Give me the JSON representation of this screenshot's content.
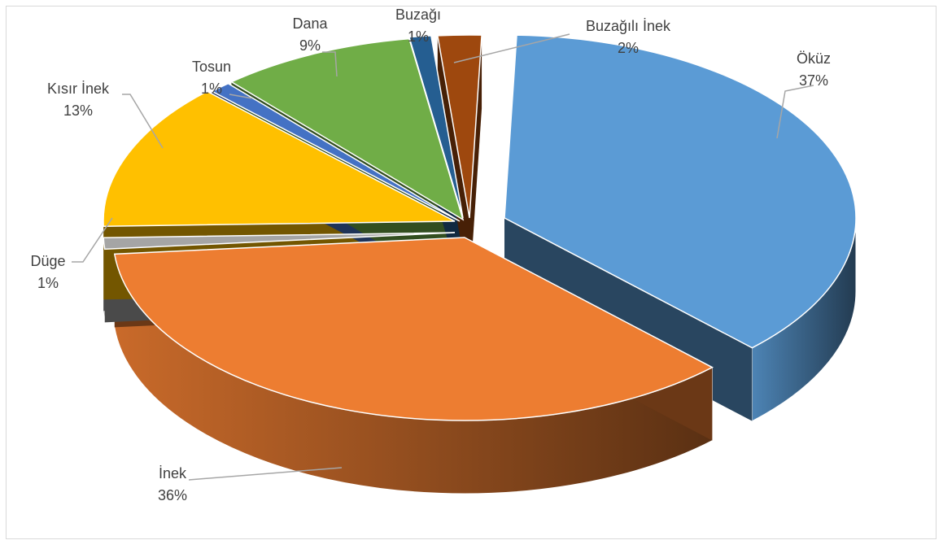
{
  "chart_data": {
    "type": "pie",
    "style": "3d-exploded",
    "title": "",
    "show_legend": false,
    "slices": [
      {
        "category": "Öküz",
        "value": 37,
        "label": "37%",
        "color": "#5b9bd5"
      },
      {
        "category": "İnek",
        "value": 36,
        "label": "36%",
        "color": "#ed7d31"
      },
      {
        "category": "Düge",
        "value": 1,
        "label": "1%",
        "color": "#a5a5a5"
      },
      {
        "category": "Kısır İnek",
        "value": 13,
        "label": "13%",
        "color": "#ffc000"
      },
      {
        "category": "Tosun",
        "value": 1,
        "label": "1%",
        "color": "#4472c4"
      },
      {
        "category": "Dana",
        "value": 9,
        "label": "9%",
        "color": "#70ad47"
      },
      {
        "category": "Buzağı",
        "value": 1,
        "label": "1%",
        "color": "#255e91"
      },
      {
        "category": "Buzağılı İnek",
        "value": 2,
        "label": "2%",
        "color": "#9e480e"
      }
    ]
  }
}
